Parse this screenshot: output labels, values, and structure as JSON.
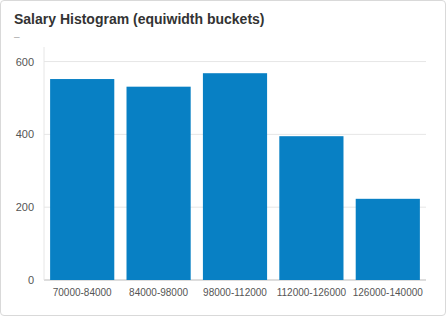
{
  "chart_data": {
    "type": "bar",
    "title": "Salary Histogram (equiwidth buckets)",
    "subtitle": "–",
    "categories": [
      "70000-84000",
      "84000-98000",
      "98000-112000",
      "112000-126000",
      "126000-140000"
    ],
    "values": [
      552,
      531,
      568,
      395,
      223
    ],
    "color": "#0880c4",
    "ylim": [
      0,
      640
    ],
    "yticks": [
      0,
      200,
      400,
      600
    ],
    "grid": true
  }
}
